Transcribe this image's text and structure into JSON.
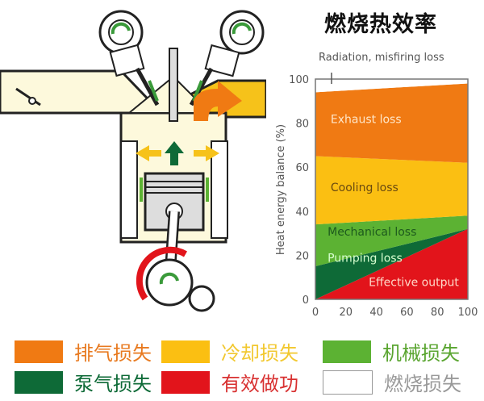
{
  "title": "燃烧热效率",
  "chart_data": {
    "type": "area",
    "stacked": true,
    "x": [
      0,
      100
    ],
    "xlim": [
      0,
      100
    ],
    "ylim": [
      0,
      100
    ],
    "xticks": [
      "0",
      "20",
      "40",
      "60",
      "80",
      "100"
    ],
    "yticks": [
      "0",
      "20",
      "40",
      "60",
      "80",
      "100"
    ],
    "ylabel": "Heat energy balance (%)",
    "annotation": "Radiation, misfiring loss",
    "series": [
      {
        "name": "Effective output",
        "values": [
          0,
          32
        ],
        "color": "#e2141b",
        "label_color": "#ffd9c8"
      },
      {
        "name": "Pumping loss",
        "values": [
          15,
          0
        ],
        "color": "#0e6a37",
        "label_color": "#d8ffd0"
      },
      {
        "name": "Mechanical loss",
        "values": [
          19,
          6
        ],
        "color": "#5cb233",
        "label_color": "#1d5a1d"
      },
      {
        "name": "Cooling loss",
        "values": [
          31,
          24
        ],
        "color": "#fbbf12",
        "label_color": "#6a4a10"
      },
      {
        "name": "Exhaust loss",
        "values": [
          29,
          36
        ],
        "color": "#f07a13",
        "label_color": "#ffe6c8"
      },
      {
        "name": "Radiation, misfiring loss",
        "values": [
          6,
          2
        ],
        "color": "#ffffff"
      }
    ]
  },
  "legend": [
    {
      "label": "排气损失",
      "color": "#f07a13",
      "text_color": "#e87a20"
    },
    {
      "label": "冷却损失",
      "color": "#fbbf12",
      "text_color": "#f2c830"
    },
    {
      "label": "机械损失",
      "color": "#5cb233",
      "text_color": "#5aa530"
    },
    {
      "label": "泵气损失",
      "color": "#0e6a37",
      "text_color": "#0e6a37"
    },
    {
      "label": "有效做功",
      "color": "#e2141b",
      "text_color": "#d83030"
    },
    {
      "label": "燃烧损失",
      "color": "#ffffff",
      "text_color": "#999999"
    }
  ]
}
